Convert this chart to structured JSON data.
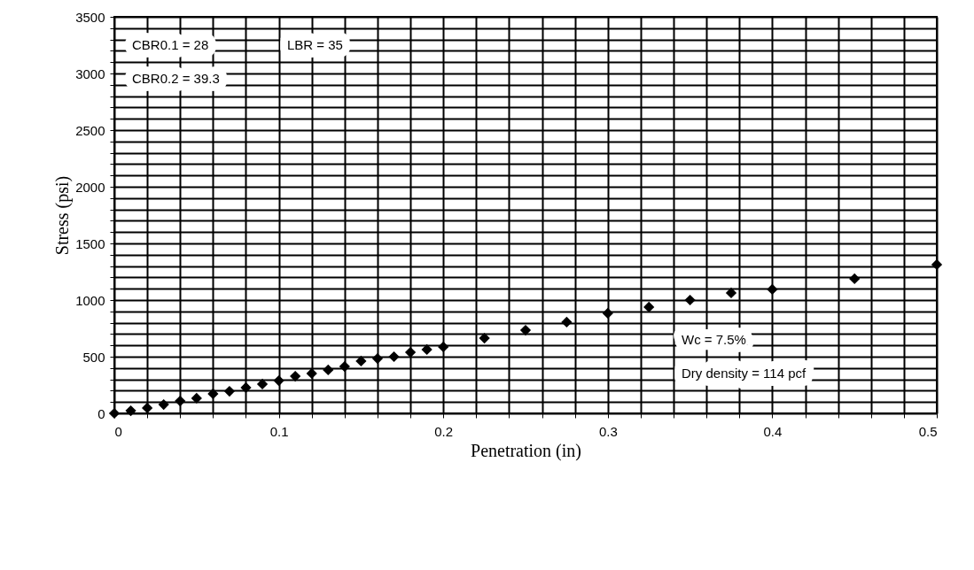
{
  "chart_data": {
    "type": "scatter",
    "xlabel": "Penetration (in)",
    "ylabel": "Stress (psi)",
    "x": [
      0,
      0.01,
      0.02,
      0.03,
      0.04,
      0.05,
      0.06,
      0.07,
      0.08,
      0.09,
      0.1,
      0.11,
      0.12,
      0.13,
      0.14,
      0.15,
      0.16,
      0.17,
      0.18,
      0.19,
      0.2,
      0.225,
      0.25,
      0.275,
      0.3,
      0.325,
      0.35,
      0.375,
      0.4,
      0.45,
      0.5
    ],
    "values": [
      0,
      23,
      47,
      78,
      109,
      133,
      172,
      195,
      227,
      258,
      289,
      328,
      352,
      383,
      414,
      461,
      484,
      500,
      539,
      563,
      586,
      664,
      734,
      805,
      883,
      938,
      1000,
      1063,
      1094,
      1188,
      1313
    ],
    "color": "#000000",
    "marker": "diamond",
    "grid": true,
    "xlim": [
      0,
      0.5
    ],
    "ylim": [
      0,
      3500
    ],
    "xticks": [
      0,
      {
        "value": 0.02,
        "label": null
      },
      {
        "value": 0.04,
        "label": null
      },
      {
        "value": 0.06,
        "label": null
      },
      {
        "value": 0.08,
        "label": null
      },
      0.1,
      {
        "value": 0.12,
        "label": null
      },
      {
        "value": 0.14,
        "label": null
      },
      {
        "value": 0.16,
        "label": null
      },
      {
        "value": 0.18,
        "label": null
      },
      0.2,
      {
        "value": 0.22,
        "label": null
      },
      {
        "value": 0.24,
        "label": null
      },
      {
        "value": 0.26,
        "label": null
      },
      {
        "value": 0.28,
        "label": null
      },
      0.3,
      {
        "value": 0.32,
        "label": null
      },
      {
        "value": 0.34,
        "label": null
      },
      {
        "value": 0.36,
        "label": null
      },
      {
        "value": 0.38,
        "label": null
      },
      0.4,
      {
        "value": 0.42,
        "label": null
      },
      {
        "value": 0.44,
        "label": null
      },
      {
        "value": 0.46,
        "label": null
      },
      {
        "value": 0.48,
        "label": null
      },
      0.5
    ],
    "yticks": [
      0,
      {
        "value": 100,
        "label": null
      },
      {
        "value": 200,
        "label": null
      },
      {
        "value": 300,
        "label": null
      },
      {
        "value": 400,
        "label": null
      },
      500,
      {
        "value": 600,
        "label": null
      },
      {
        "value": 700,
        "label": null
      },
      {
        "value": 800,
        "label": null
      },
      {
        "value": 900,
        "label": null
      },
      1000,
      {
        "value": 1100,
        "label": null
      },
      {
        "value": 1200,
        "label": null
      },
      {
        "value": 1300,
        "label": null
      },
      {
        "value": 1400,
        "label": null
      },
      1500,
      {
        "value": 1600,
        "label": null
      },
      {
        "value": 1700,
        "label": null
      },
      {
        "value": 1800,
        "label": null
      },
      {
        "value": 1900,
        "label": null
      },
      2000,
      {
        "value": 2100,
        "label": null
      },
      {
        "value": 2200,
        "label": null
      },
      {
        "value": 2300,
        "label": null
      },
      {
        "value": 2400,
        "label": null
      },
      2500,
      {
        "value": 2600,
        "label": null
      },
      {
        "value": 2700,
        "label": null
      },
      {
        "value": 2800,
        "label": null
      },
      {
        "value": 2900,
        "label": null
      },
      3000,
      {
        "value": 3100,
        "label": null
      },
      {
        "value": 3200,
        "label": null
      },
      {
        "value": 3300,
        "label": null
      },
      {
        "value": 3400,
        "label": null
      },
      3500
    ],
    "annotations": [
      "CBR0.1 = 28",
      "LBR = 35",
      "CBR0.2 = 39.3",
      "Wc = 7.5%",
      "Dry density = 114 pcf"
    ]
  }
}
